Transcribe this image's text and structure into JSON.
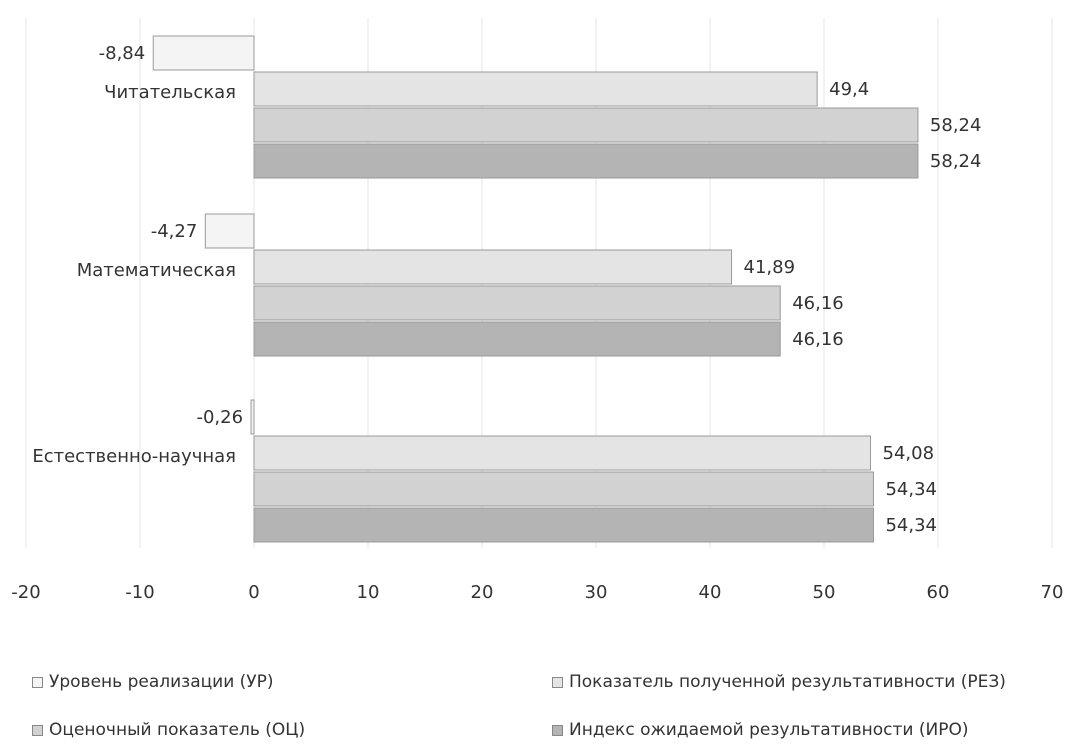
{
  "chart_data": {
    "type": "bar",
    "orientation": "horizontal",
    "categories": [
      "Читательская",
      "Математическая",
      "Естественно-научная"
    ],
    "series": [
      {
        "name": "Уровень реализации (УР)",
        "values": [
          -8.84,
          -4.27,
          -0.26
        ],
        "labels": [
          "-8,84",
          "-4,27",
          "-0,26"
        ],
        "color": "#f4f4f4"
      },
      {
        "name": "Показатель полученной результативности (РЕЗ)",
        "values": [
          49.4,
          41.89,
          54.08
        ],
        "labels": [
          "49,4",
          "41,89",
          "54,08"
        ],
        "color": "#e4e4e4"
      },
      {
        "name": "Оценочный показатель (ОЦ)",
        "values": [
          58.24,
          46.16,
          54.34
        ],
        "labels": [
          "58,24",
          "46,16",
          "54,34"
        ],
        "color": "#d2d2d2"
      },
      {
        "name": "Индекс ожидаемой результативности (ИРО)",
        "values": [
          58.24,
          46.16,
          54.34
        ],
        "labels": [
          "58,24",
          "46,16",
          "54,34"
        ],
        "color": "#b4b4b4"
      }
    ],
    "xlim": [
      -20,
      70
    ],
    "xticks": [
      -20,
      -10,
      0,
      10,
      20,
      30,
      40,
      50,
      60,
      70
    ],
    "grid": true,
    "legend": "bottom",
    "title": "",
    "xlabel": "",
    "ylabel": ""
  }
}
